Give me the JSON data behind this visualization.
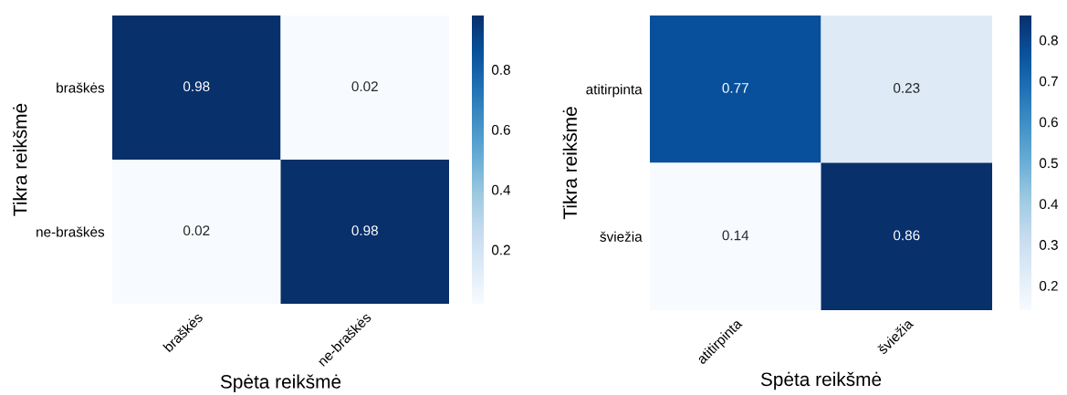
{
  "chart_data": [
    {
      "type": "heatmap",
      "xlabel": "Spėta reikšmė",
      "ylabel": "Tikra reikšmė",
      "categories": [
        "braškės",
        "ne-braškės"
      ],
      "y_categories": [
        "braškės",
        "ne-braškės"
      ],
      "cells": [
        [
          0.98,
          0.02
        ],
        [
          0.02,
          0.98
        ]
      ],
      "data_labels": true,
      "clim": [
        0.02,
        0.98
      ],
      "cticks": [
        0.2,
        0.4,
        0.6,
        0.8
      ]
    },
    {
      "type": "heatmap",
      "xlabel": "Spėta reikšmė",
      "ylabel": "Tikra reikšmė",
      "categories": [
        "atitirpinta",
        "šviežia"
      ],
      "y_categories": [
        "atitirpinta",
        "šviežia"
      ],
      "cells": [
        [
          0.77,
          0.23
        ],
        [
          0.14,
          0.86
        ]
      ],
      "data_labels": true,
      "clim": [
        0.14,
        0.86
      ],
      "cticks": [
        0.2,
        0.3,
        0.4,
        0.5,
        0.6,
        0.7,
        0.8
      ]
    }
  ]
}
